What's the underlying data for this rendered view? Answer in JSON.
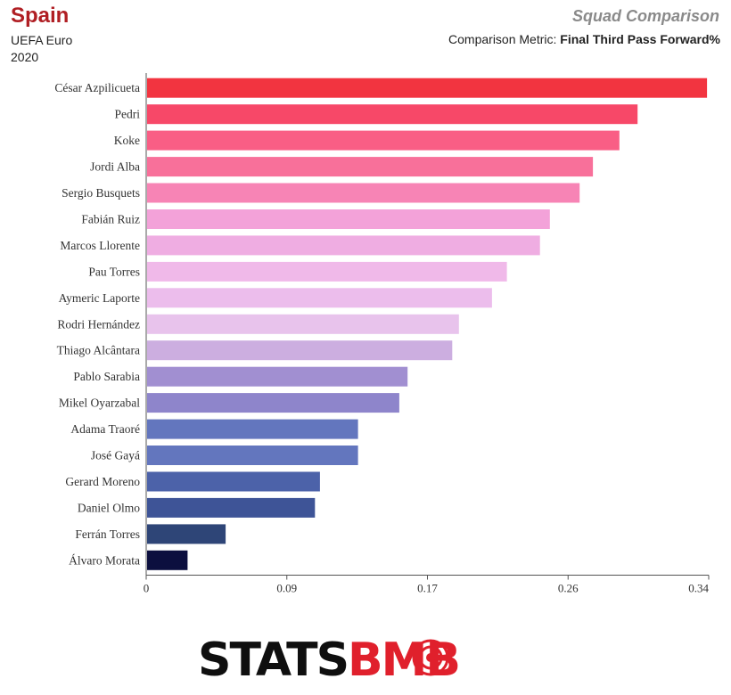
{
  "header": {
    "team": "Spain",
    "competition": "UEFA Euro",
    "season": "2020",
    "chart_heading": "Squad Comparison",
    "metric_label": "Comparison Metric:",
    "metric_value": "Final Third Pass Forward%"
  },
  "chart_data": {
    "type": "bar",
    "orientation": "horizontal",
    "categories": [
      "César Azpilicueta",
      "Pedri",
      "Koke",
      "Jordi Alba",
      "Sergio Busquets",
      "Fabián Ruiz",
      "Marcos Llorente",
      "Pau Torres",
      "Aymeric Laporte",
      "Rodri Hernández",
      "Thiago Alcântara",
      "Pablo Sarabia",
      "Mikel Oyarzabal",
      "Adama Traoré",
      "José Gayá",
      "Gerard Moreno",
      "Daniel Olmo",
      "Ferrán Torres",
      "Álvaro Morata"
    ],
    "values": [
      0.339,
      0.297,
      0.286,
      0.27,
      0.262,
      0.244,
      0.238,
      0.218,
      0.209,
      0.189,
      0.185,
      0.158,
      0.153,
      0.128,
      0.128,
      0.105,
      0.102,
      0.048,
      0.025
    ],
    "colors": [
      "#f23440",
      "#f74868",
      "#f95e85",
      "#f8709a",
      "#f784b5",
      "#f3a2d9",
      "#efade2",
      "#f0b9e9",
      "#ecbdec",
      "#e8c3ec",
      "#ccaee0",
      "#a18fd1",
      "#8e85cb",
      "#6376be",
      "#6376be",
      "#4c62a9",
      "#3e5497",
      "#2e4577",
      "#0c0f3f"
    ],
    "x_ticks": [
      "0",
      "0.09",
      "0.17",
      "0.26",
      "0.34"
    ],
    "xlim": [
      0,
      0.34
    ],
    "grid": false
  },
  "logo": {
    "part1": "STATS",
    "part2": "B",
    "part3": "MB",
    "color_dark": "#0f0f0f",
    "color_red": "#e0202c"
  }
}
